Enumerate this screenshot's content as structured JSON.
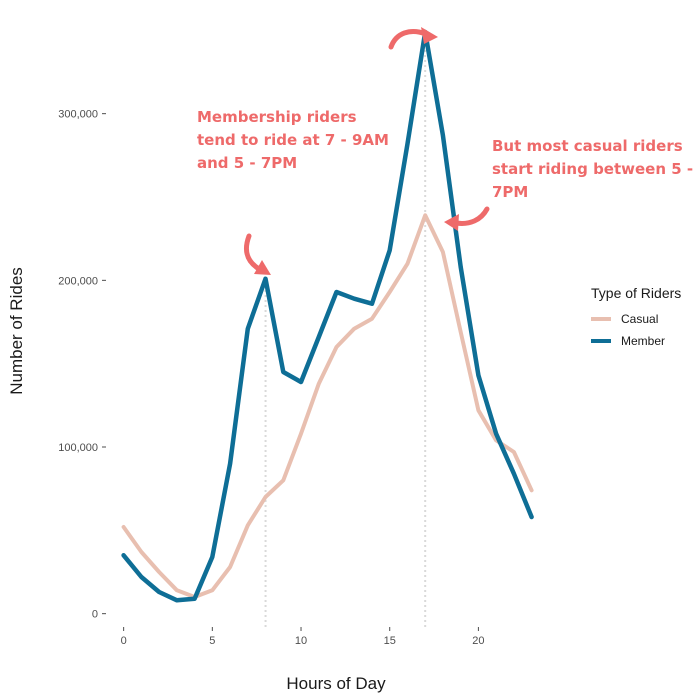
{
  "chart_data": {
    "type": "line",
    "xlabel": "Hours of Day",
    "ylabel": "Number of Rides",
    "xlim": [
      -0.6,
      24.6
    ],
    "ylim": [
      -8000,
      355000
    ],
    "x_ticks": [
      0,
      5,
      10,
      15,
      20
    ],
    "x_tick_labels": [
      "0",
      "5",
      "10",
      "15",
      "20"
    ],
    "y_ticks": [
      0,
      100000,
      200000,
      300000
    ],
    "y_tick_labels": [
      "0",
      "100,000",
      "200,000",
      "300,000"
    ],
    "grid": false,
    "legend": {
      "title": "Type of Riders",
      "position": "right"
    },
    "x": [
      0,
      1,
      2,
      3,
      4,
      5,
      6,
      7,
      8,
      9,
      10,
      11,
      12,
      13,
      14,
      15,
      16,
      17,
      18,
      19,
      20,
      21,
      22,
      23
    ],
    "series": [
      {
        "name": "Casual",
        "color": "#e8bfb0",
        "values": [
          52000,
          37000,
          25000,
          14000,
          10000,
          14000,
          28000,
          53000,
          70000,
          80000,
          108000,
          138000,
          160000,
          171000,
          177000,
          193000,
          210000,
          239000,
          217000,
          169000,
          122000,
          104000,
          97000,
          74000
        ]
      },
      {
        "name": "Member",
        "color": "#0e6e96",
        "values": [
          35000,
          22000,
          13000,
          8000,
          9000,
          34000,
          90000,
          171000,
          201000,
          145000,
          139000,
          166000,
          193000,
          189000,
          186000,
          218000,
          282000,
          349000,
          287000,
          208000,
          143000,
          108000,
          84000,
          58000
        ]
      }
    ],
    "reference_lines": [
      8,
      17
    ],
    "annotations": [
      {
        "lines": [
          "Membership riders",
          "tend to ride at 7 - 9AM",
          "and 5 - 7PM"
        ]
      },
      {
        "lines": [
          "But most casual riders",
          "start riding between 5 -",
          "7PM"
        ]
      }
    ],
    "annotation_color": "#ee6a6a"
  }
}
